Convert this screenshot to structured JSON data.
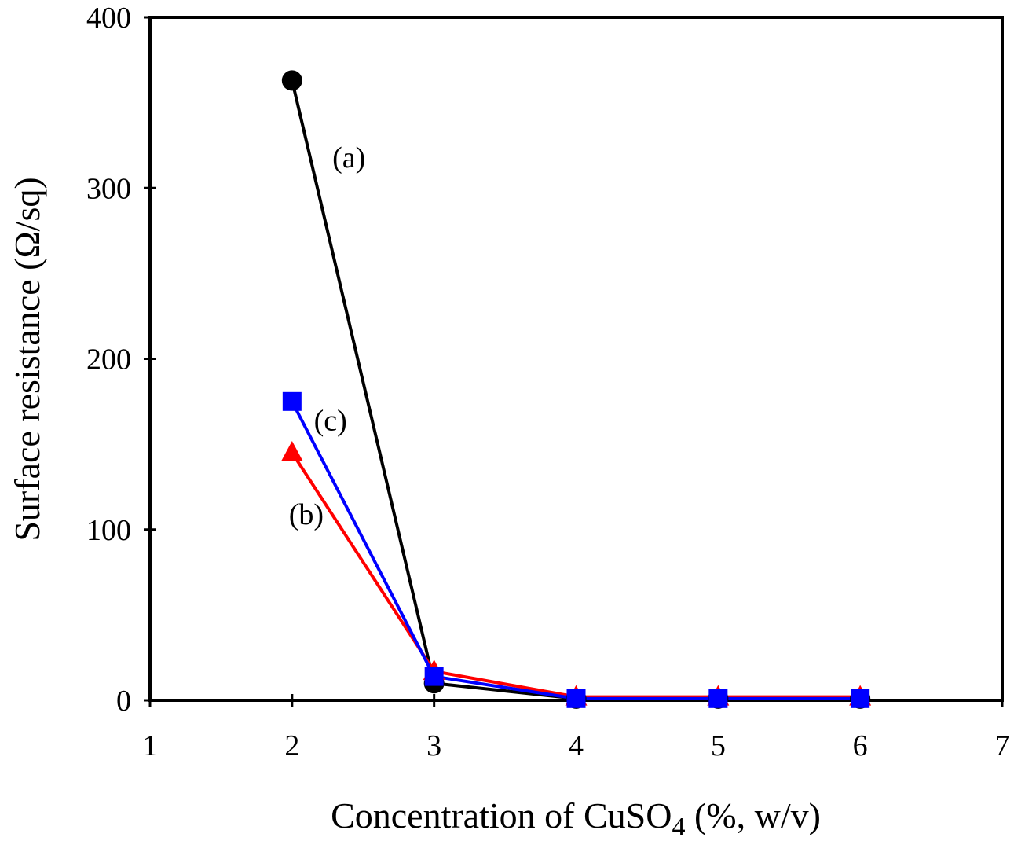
{
  "chart_data": {
    "type": "line",
    "title": "",
    "xlabel": "Concentration of CuSO",
    "xlabel_subscript": "4",
    "xlabel_suffix": " (%, w/v)",
    "ylabel": "Surface resistance (Ω/sq)",
    "xlim": [
      1,
      7
    ],
    "ylim": [
      0,
      400
    ],
    "xticks": [
      1,
      2,
      3,
      4,
      5,
      6,
      7
    ],
    "yticks": [
      0,
      100,
      200,
      300,
      400
    ],
    "grid": false,
    "legend": "none",
    "x": [
      2,
      3,
      4,
      5,
      6
    ],
    "series": [
      {
        "name": "(a)",
        "color": "#000000",
        "marker": "circle",
        "values": [
          363,
          10,
          1,
          1,
          1
        ]
      },
      {
        "name": "(b)",
        "color": "#ff0000",
        "marker": "triangle",
        "values": [
          145,
          17,
          2,
          2,
          2
        ]
      },
      {
        "name": "(c)",
        "color": "#0000ff",
        "marker": "square",
        "values": [
          175,
          14,
          1,
          1,
          1
        ]
      }
    ],
    "annotations": [
      {
        "text": "(a)",
        "series": "(a)",
        "near_x": 2.4,
        "near_y": 312
      },
      {
        "text": "(c)",
        "series": "(c)",
        "near_x": 2.27,
        "near_y": 158
      },
      {
        "text": "(b)",
        "series": "(b)",
        "near_x": 2.1,
        "near_y": 103
      }
    ]
  }
}
